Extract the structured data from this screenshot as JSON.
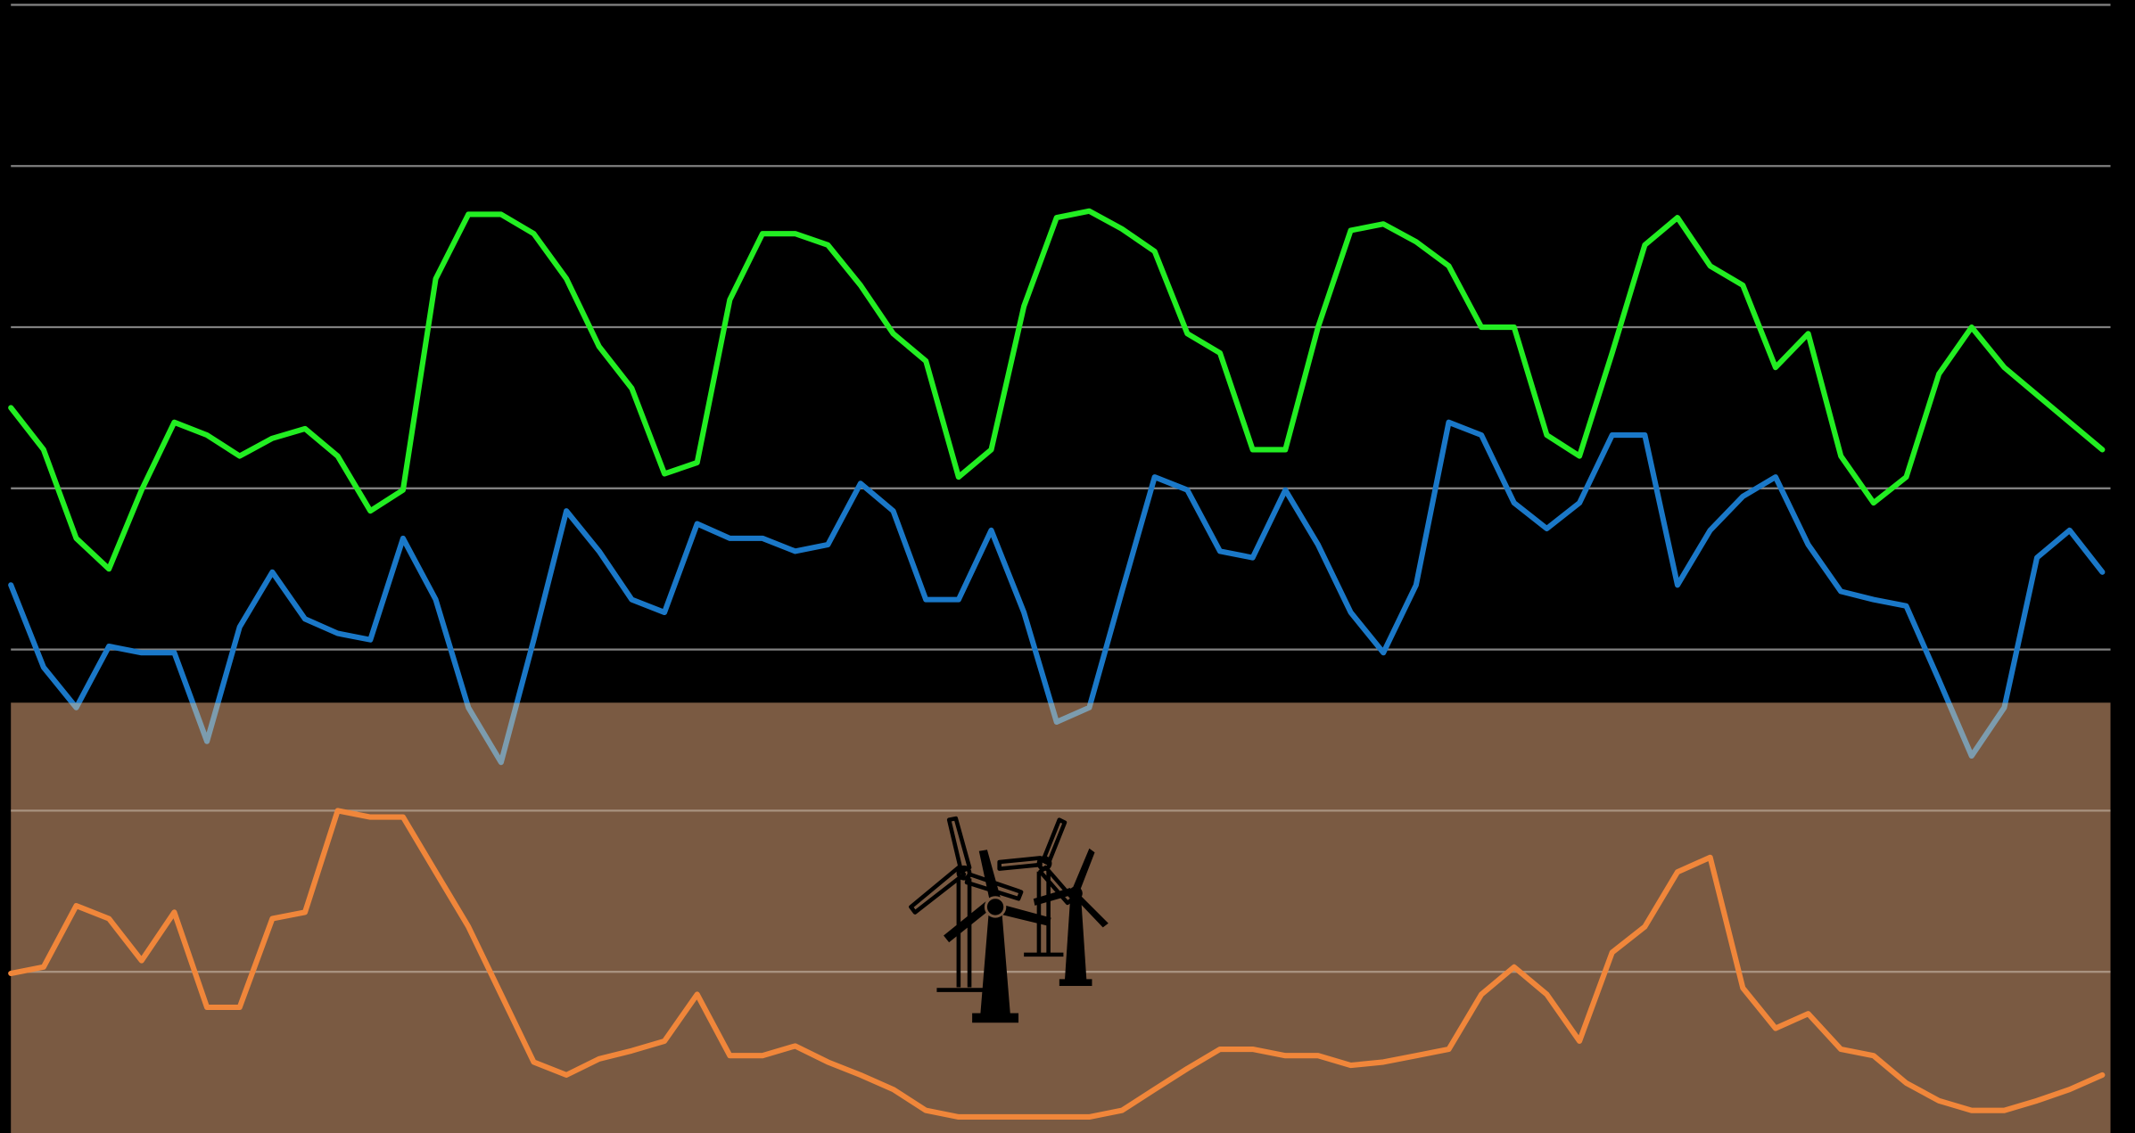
{
  "chart_data": {
    "type": "line",
    "categories": [
      null,
      null,
      null,
      null,
      null,
      null,
      null,
      null,
      null,
      null,
      null,
      null,
      null,
      null,
      null,
      null,
      null,
      null,
      null,
      null,
      null,
      null,
      null,
      null,
      null,
      null,
      null,
      null,
      null,
      null,
      null,
      null,
      null,
      null,
      null,
      null,
      null,
      null,
      null,
      null,
      null,
      null,
      null,
      null,
      null,
      null,
      null,
      null,
      null,
      null,
      null,
      null,
      null,
      null,
      null,
      null,
      null,
      null,
      null,
      null,
      null,
      null,
      null,
      null,
      null
    ],
    "series": [
      {
        "color": "#22ee22",
        "values": [
          45.0,
          42.4,
          36.9,
          35.0,
          39.9,
          44.1,
          43.3,
          42.0,
          43.1,
          43.7,
          42.0,
          38.6,
          39.9,
          53.0,
          57.0,
          57.0,
          55.8,
          53.0,
          48.8,
          46.2,
          40.9,
          41.6,
          51.7,
          55.8,
          55.8,
          55.1,
          52.6,
          49.6,
          47.9,
          40.7,
          42.4,
          51.3,
          56.8,
          57.2,
          56.1,
          54.7,
          49.6,
          48.4,
          42.4,
          42.4,
          50.0,
          56.0,
          56.4,
          55.3,
          53.8,
          50.0,
          50.0,
          43.3,
          42.0,
          48.4,
          55.1,
          56.8,
          53.8,
          52.6,
          47.5,
          49.6,
          42.0,
          39.1,
          40.7,
          47.1,
          50.0,
          47.5,
          45.8,
          44.1,
          42.4
        ]
      },
      {
        "color": "#1a78c8",
        "shaded_color": "#7c9cae",
        "values": [
          34.0,
          28.9,
          26.4,
          30.2,
          29.8,
          29.8,
          24.3,
          31.4,
          34.8,
          31.9,
          31.0,
          30.6,
          36.9,
          33.1,
          26.4,
          23.0,
          30.6,
          38.6,
          36.1,
          33.1,
          32.3,
          37.8,
          36.9,
          36.9,
          36.1,
          36.5,
          40.3,
          38.6,
          33.1,
          33.1,
          37.4,
          32.3,
          25.5,
          26.4,
          33.6,
          40.7,
          39.9,
          36.1,
          35.7,
          39.9,
          36.5,
          32.3,
          29.8,
          34.0,
          44.1,
          43.3,
          39.1,
          37.5,
          39.1,
          43.3,
          43.3,
          34.0,
          37.4,
          39.5,
          40.7,
          36.5,
          33.6,
          33.1,
          32.7,
          28.1,
          23.4,
          26.4,
          35.7,
          37.4,
          34.8
        ]
      },
      {
        "color": "#f0863a",
        "values": [
          9.9,
          10.3,
          14.1,
          13.3,
          10.7,
          13.7,
          7.8,
          7.8,
          13.3,
          13.7,
          20.0,
          19.6,
          19.6,
          16.2,
          12.8,
          8.6,
          4.4,
          3.6,
          4.6,
          5.1,
          5.7,
          8.6,
          4.8,
          4.8,
          5.4,
          4.4,
          3.6,
          2.7,
          1.4,
          1.0,
          1.0,
          1.0,
          1.0,
          1.0,
          1.4,
          2.7,
          4.0,
          5.2,
          5.2,
          4.8,
          4.8,
          4.2,
          4.4,
          4.8,
          5.2,
          8.6,
          10.3,
          8.6,
          5.7,
          11.2,
          12.8,
          16.2,
          17.1,
          9.0,
          6.5,
          7.4,
          5.2,
          4.8,
          3.1,
          2.0,
          1.4,
          1.4,
          2.0,
          2.7,
          3.6
        ]
      }
    ],
    "ylim": [
      0,
      70.3
    ],
    "yticks": [
      10,
      20,
      30,
      40,
      50,
      60,
      70
    ],
    "grid": true,
    "grid_color": "#808080",
    "shaded_below": 26.7,
    "shade_color": "#7a5a42",
    "shade_grid_color": "#a8927f"
  }
}
